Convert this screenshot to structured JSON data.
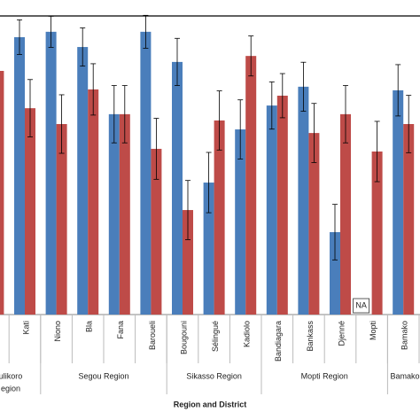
{
  "chart_data": {
    "type": "bar",
    "x_label": "Region and District",
    "categories": [
      null,
      "Kati",
      "Niono",
      "Bla",
      "Fana",
      "Baroueli",
      "Bougouni",
      "Sélingué",
      "Kadiolo",
      "Bandiagara",
      "Bankass",
      "Djenné",
      "Mopti",
      "Bamako"
    ],
    "series": [
      {
        "color": "#4a7ebb",
        "values": [
          null,
          92.9,
          94.7,
          89.6,
          67.1,
          94.7,
          84.6,
          44.2,
          62.0,
          70.0,
          76.3,
          27.6,
          null,
          75.1
        ],
        "errors": [
          null,
          5.8,
          5.2,
          6.4,
          9.6,
          5.5,
          7.9,
          10.1,
          9.9,
          7.9,
          8.2,
          9.3,
          null,
          8.6
        ]
      },
      {
        "color": "#be4b48",
        "values": [
          81.6,
          69.1,
          63.8,
          75.4,
          67.1,
          55.5,
          35.0,
          65.0,
          86.6,
          73.3,
          60.8,
          67.1,
          54.6,
          63.8
        ],
        "errors": [
          null,
          9.6,
          9.8,
          8.6,
          9.6,
          10.2,
          9.9,
          9.9,
          6.7,
          7.4,
          9.9,
          9.6,
          10.1,
          9.6
        ]
      }
    ],
    "regions": [
      {
        "lines": [
          "ulikoro",
          "egion"
        ],
        "from": 0,
        "to": 1
      },
      {
        "lines": [
          "Segou Region"
        ],
        "from": 2,
        "to": 5
      },
      {
        "lines": [
          "Sikasso Region"
        ],
        "from": 6,
        "to": 8
      },
      {
        "lines": [
          "Mopti Region"
        ],
        "from": 9,
        "to": 12
      },
      {
        "lines": [
          "Bamako"
        ],
        "from": 13,
        "to": 13
      }
    ],
    "annotations": [
      {
        "text": "NA",
        "category": 12,
        "series": 0
      }
    ],
    "ylim": [
      0,
      100
    ]
  }
}
